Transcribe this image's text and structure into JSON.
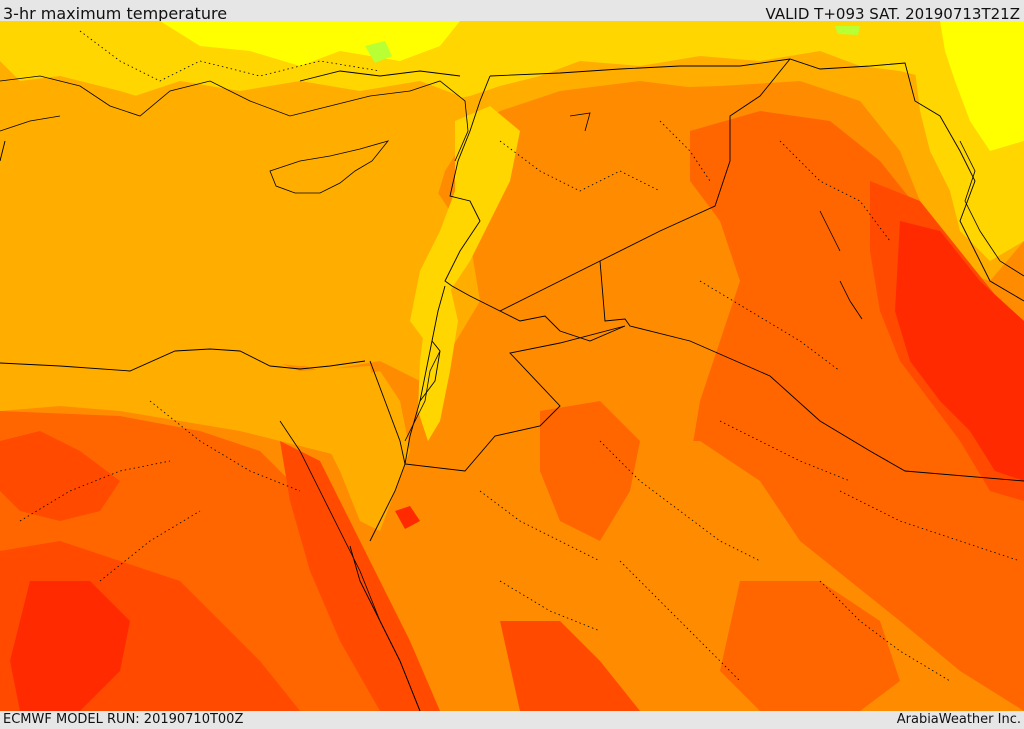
{
  "header": {
    "title": "3-hr maximum temperature",
    "valid_time": "VALID T+093 SAT. 20190713T21Z"
  },
  "footer": {
    "model_run": "ECMWF MODEL RUN: 20190710T00Z",
    "credit": "ArabiaWeather Inc."
  },
  "colors": {
    "level_yellow": "#ffff00",
    "level_light_yellow_orange": "#ffd600",
    "level_orange_light": "#ffae00",
    "level_orange": "#ff8c00",
    "level_dark_orange": "#ff6600",
    "level_red_orange": "#ff4a00",
    "level_red": "#ff2a00",
    "level_green": "#b8ff33",
    "borders": "#000000"
  }
}
